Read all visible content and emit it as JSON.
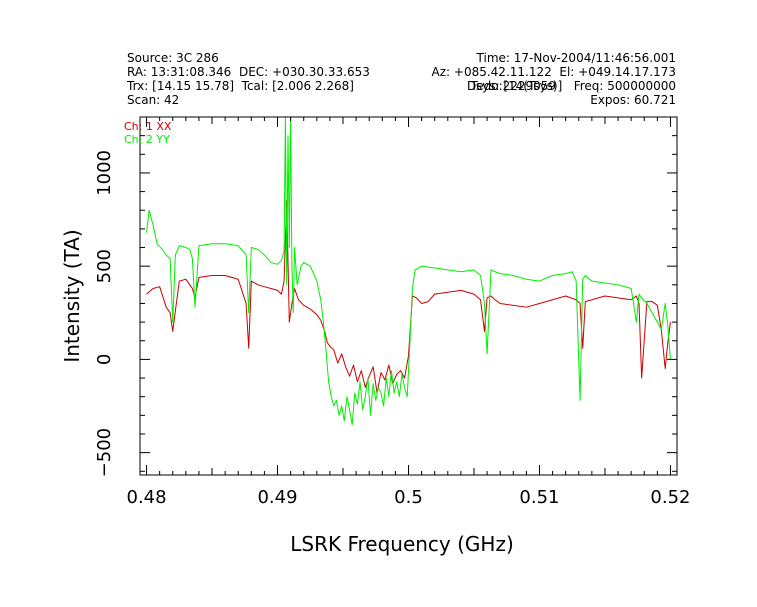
{
  "header": {
    "source": "Source: 3C 286",
    "time": "Time: 17-Nov-2004/11:46:56.001",
    "ra_dec": "RA: 13:31:08.346  DEC: +030.30.33.653",
    "az_el": "Az: +085.42.11.122  El: +049.14.17.173",
    "trx_tcal": "Trx: [14.15 15.78]  Tcal: [2.006 2.268]",
    "tsys_freq": "Tsys: [14(Tsys)]   Freq: 500000000",
    "overlap_text": "Dedo:2229059",
    "scan": "Scan: 42",
    "expos": "Expos: 60.721"
  },
  "chart_data": {
    "type": "line",
    "xlabel": "LSRK Frequency (GHz)",
    "ylabel": "Intensity (TA)",
    "xlim": [
      0.4795,
      0.5205
    ],
    "ylim": [
      -620,
      1300
    ],
    "xticks": [
      0.48,
      0.49,
      0.5,
      0.51,
      0.52
    ],
    "xtick_labels": [
      "0.48",
      "0.49",
      "0.5",
      "0.51",
      "0.52"
    ],
    "yticks": [
      -500,
      0,
      500,
      1000
    ],
    "ytick_labels": [
      "−500",
      "0",
      "500",
      "1000"
    ],
    "legend_position": "top-left",
    "series": [
      {
        "name": "Ch: 1 XX",
        "color": "#cc0000",
        "x": [
          0.48,
          0.4805,
          0.481,
          0.4815,
          0.4818,
          0.482,
          0.4822,
          0.4825,
          0.483,
          0.4833,
          0.4835,
          0.4837,
          0.484,
          0.485,
          0.486,
          0.487,
          0.4876,
          0.4878,
          0.488,
          0.4885,
          0.489,
          0.4895,
          0.49,
          0.4903,
          0.4905,
          0.4907,
          0.4909,
          0.4911,
          0.4913,
          0.4916,
          0.492,
          0.4925,
          0.493,
          0.4933,
          0.4936,
          0.4938,
          0.494,
          0.4943,
          0.4946,
          0.4949,
          0.4952,
          0.4955,
          0.4958,
          0.4961,
          0.4964,
          0.4967,
          0.497,
          0.4973,
          0.4976,
          0.4979,
          0.4982,
          0.4985,
          0.4988,
          0.4991,
          0.4994,
          0.4997,
          0.5,
          0.5003,
          0.5006,
          0.501,
          0.5015,
          0.502,
          0.503,
          0.504,
          0.505,
          0.5055,
          0.5058,
          0.506,
          0.5063,
          0.5066,
          0.507,
          0.508,
          0.509,
          0.51,
          0.511,
          0.512,
          0.5128,
          0.5131,
          0.5133,
          0.5135,
          0.514,
          0.515,
          0.516,
          0.517,
          0.5174,
          0.5176,
          0.5178,
          0.5182,
          0.5186,
          0.519,
          0.5193,
          0.5196,
          0.5198,
          0.52
        ],
        "y": [
          350,
          380,
          390,
          280,
          250,
          150,
          260,
          420,
          430,
          400,
          380,
          330,
          440,
          450,
          450,
          430,
          300,
          60,
          420,
          400,
          390,
          380,
          370,
          350,
          420,
          850,
          200,
          300,
          380,
          320,
          290,
          270,
          240,
          210,
          150,
          90,
          70,
          50,
          -20,
          30,
          -40,
          -90,
          -30,
          -120,
          -60,
          -150,
          -90,
          -40,
          -180,
          -70,
          -110,
          -30,
          -130,
          -80,
          -60,
          -100,
          20,
          340,
          330,
          300,
          310,
          350,
          360,
          370,
          350,
          320,
          150,
          330,
          340,
          320,
          300,
          290,
          280,
          300,
          320,
          340,
          320,
          300,
          60,
          310,
          320,
          340,
          330,
          320,
          340,
          300,
          -100,
          310,
          310,
          290,
          160,
          -50,
          90,
          200
        ]
      },
      {
        "name": "Ch: 2 YY",
        "color": "#00ee00",
        "x": [
          0.48,
          0.4802,
          0.4805,
          0.4808,
          0.4812,
          0.4815,
          0.4818,
          0.482,
          0.4822,
          0.4825,
          0.483,
          0.4833,
          0.4835,
          0.4837,
          0.484,
          0.485,
          0.486,
          0.487,
          0.4876,
          0.4878,
          0.488,
          0.4885,
          0.489,
          0.4895,
          0.49,
          0.4903,
          0.4905,
          0.4906,
          0.4907,
          0.4908,
          0.4909,
          0.491,
          0.4911,
          0.4912,
          0.4913,
          0.4915,
          0.4918,
          0.492,
          0.4925,
          0.493,
          0.4933,
          0.4935,
          0.4937,
          0.4939,
          0.4941,
          0.4943,
          0.4945,
          0.4947,
          0.4949,
          0.4951,
          0.4953,
          0.4955,
          0.4957,
          0.4959,
          0.4961,
          0.4963,
          0.4965,
          0.4967,
          0.4969,
          0.4971,
          0.4973,
          0.4975,
          0.4977,
          0.4979,
          0.4981,
          0.4983,
          0.4985,
          0.4987,
          0.4989,
          0.4991,
          0.4993,
          0.4995,
          0.4997,
          0.4999,
          0.5001,
          0.5003,
          0.5005,
          0.501,
          0.502,
          0.503,
          0.504,
          0.505,
          0.5055,
          0.5058,
          0.506,
          0.5063,
          0.5066,
          0.507,
          0.508,
          0.509,
          0.51,
          0.511,
          0.512,
          0.5125,
          0.5128,
          0.5131,
          0.5133,
          0.5135,
          0.514,
          0.515,
          0.516,
          0.517,
          0.5174,
          0.5176,
          0.5178,
          0.5182,
          0.5186,
          0.519,
          0.5193,
          0.5196,
          0.5198,
          0.52
        ],
        "y": [
          680,
          800,
          720,
          620,
          590,
          560,
          540,
          200,
          560,
          610,
          600,
          590,
          540,
          280,
          610,
          620,
          620,
          610,
          560,
          250,
          600,
          590,
          560,
          520,
          510,
          530,
          580,
          1300,
          400,
          1200,
          600,
          1300,
          500,
          250,
          600,
          400,
          500,
          520,
          500,
          420,
          320,
          200,
          50,
          -120,
          -200,
          -250,
          -220,
          -300,
          -250,
          -330,
          -200,
          -270,
          -350,
          -180,
          -240,
          -120,
          -270,
          -200,
          -100,
          -300,
          -130,
          -220,
          -150,
          -180,
          -250,
          -100,
          -200,
          -60,
          -180,
          -120,
          -200,
          -80,
          -150,
          -200,
          80,
          380,
          480,
          500,
          490,
          480,
          470,
          480,
          450,
          300,
          30,
          480,
          470,
          460,
          450,
          430,
          420,
          450,
          460,
          470,
          420,
          -220,
          430,
          450,
          420,
          410,
          400,
          380,
          200,
          350,
          330,
          300,
          250,
          200,
          160,
          300,
          180,
          0
        ]
      }
    ]
  }
}
